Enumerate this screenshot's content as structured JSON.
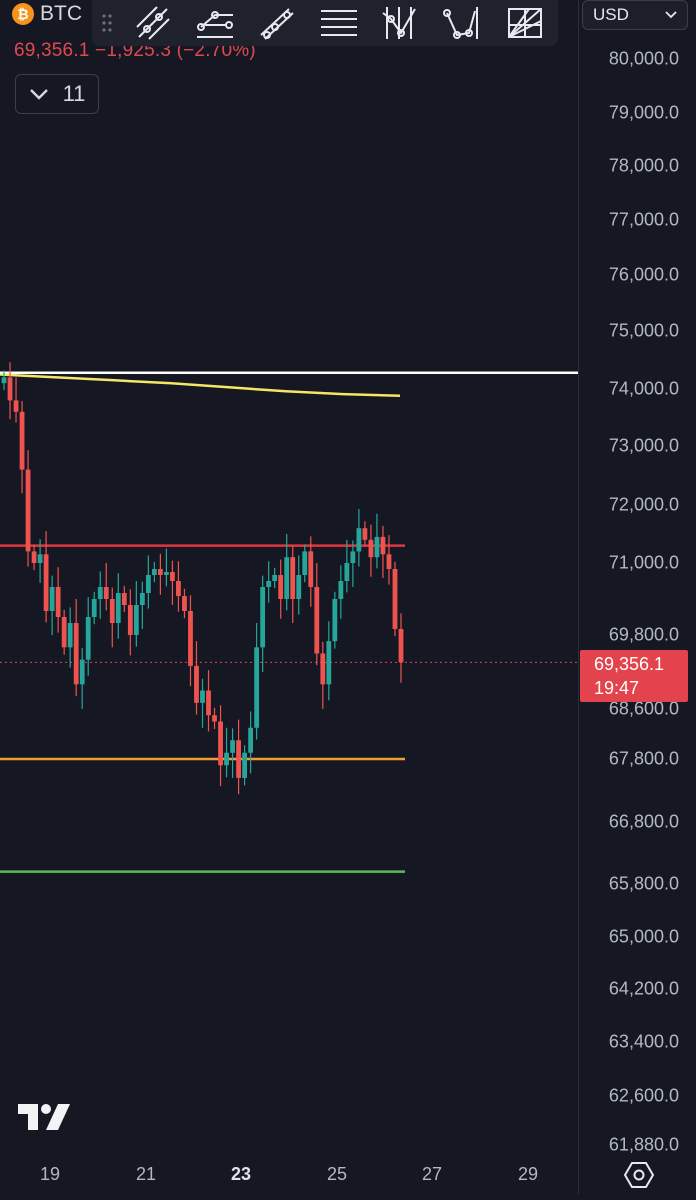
{
  "header": {
    "symbol": "BTC",
    "change_text": "69,356.1 −1,925.3 (−2.70%)",
    "indicators_count": "11"
  },
  "toolbar": {
    "tools": [
      "trend-line-icon",
      "ray-icon",
      "parallel-channel-icon",
      "horizontal-lines-icon",
      "pitchfork-icon",
      "path-icon",
      "fib-fan-icon"
    ]
  },
  "currency_selector": {
    "value": "USD"
  },
  "price_tag": {
    "price": "69,356.1",
    "countdown": "19:47"
  },
  "colors": {
    "background": "#151823",
    "up": "#26a69a",
    "down": "#ef5350",
    "resistance": "#e0373f",
    "support": "#f39c34",
    "lower_support": "#5cb85c",
    "upper_line": "#ffffff",
    "moving_average": "#f5e663"
  },
  "chart_data": {
    "type": "candlestick",
    "symbol": "BTC",
    "currency": "USD",
    "y_axis_ticks": [
      "80,000.0",
      "79,000.0",
      "78,000.0",
      "77,000.0",
      "76,000.0",
      "75,000.0",
      "74,000.0",
      "73,000.0",
      "72,000.0",
      "71,000.0",
      "69,800.0",
      "68,600.0",
      "67,800.0",
      "66,800.0",
      "65,800.0",
      "65,000.0",
      "64,200.0",
      "63,400.0",
      "62,600.0",
      "61,880.0"
    ],
    "x_axis_ticks": [
      {
        "label": "19",
        "bold": false
      },
      {
        "label": "21",
        "bold": false
      },
      {
        "label": "23",
        "bold": true
      },
      {
        "label": "25",
        "bold": false
      },
      {
        "label": "27",
        "bold": false
      },
      {
        "label": "29",
        "bold": false
      }
    ],
    "last_price": 69356.1,
    "horizontal_lines": [
      {
        "level": 74280,
        "color": "white"
      },
      {
        "level": 71300,
        "color": "red"
      },
      {
        "level": 67800,
        "color": "orange"
      },
      {
        "level": 66000,
        "color": "green"
      }
    ],
    "moving_average": [
      74250,
      74200,
      74150,
      74100,
      74030,
      73960,
      73910,
      73880
    ],
    "closes": [
      74200,
      73800,
      73600,
      72600,
      71200,
      71000,
      71150,
      70200,
      70600,
      70100,
      69600,
      70000,
      69000,
      69400,
      70100,
      70400,
      70600,
      70400,
      70000,
      70500,
      70300,
      69800,
      70300,
      70500,
      70800,
      70900,
      70800,
      70850,
      70700,
      70450,
      70200,
      69300,
      68700,
      68900,
      68500,
      68400,
      67700,
      67900,
      68100,
      67500,
      67900,
      68300,
      69600,
      70600,
      70700,
      70800,
      70400,
      71100,
      70400,
      70800,
      71200,
      70600,
      69500,
      69000,
      69700,
      70400,
      70700,
      71000,
      71200,
      71600,
      71400,
      71100,
      71450,
      71150,
      70900,
      69900,
      69356
    ]
  }
}
